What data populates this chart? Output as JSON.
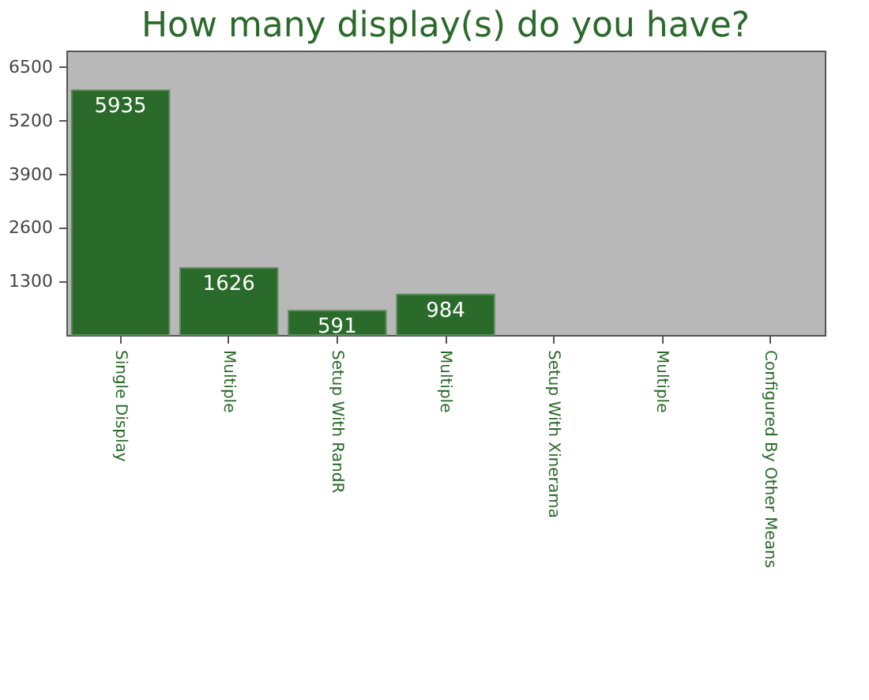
{
  "chart_data": {
    "type": "bar",
    "title": "How many display(s) do you have?",
    "categories": [
      "Single Display",
      "Multiple",
      "Setup With RandR",
      "Multiple",
      "Setup With Xinerama",
      "Multiple",
      "Configured By Other Means"
    ],
    "values": [
      5935,
      1626,
      591,
      984,
      null,
      null,
      null
    ],
    "color": "#2a6a2a",
    "ylim": [
      0,
      6900
    ],
    "yticks": [
      1300,
      2600,
      3900,
      5200,
      6500
    ],
    "grid": false,
    "data_labels": true
  }
}
